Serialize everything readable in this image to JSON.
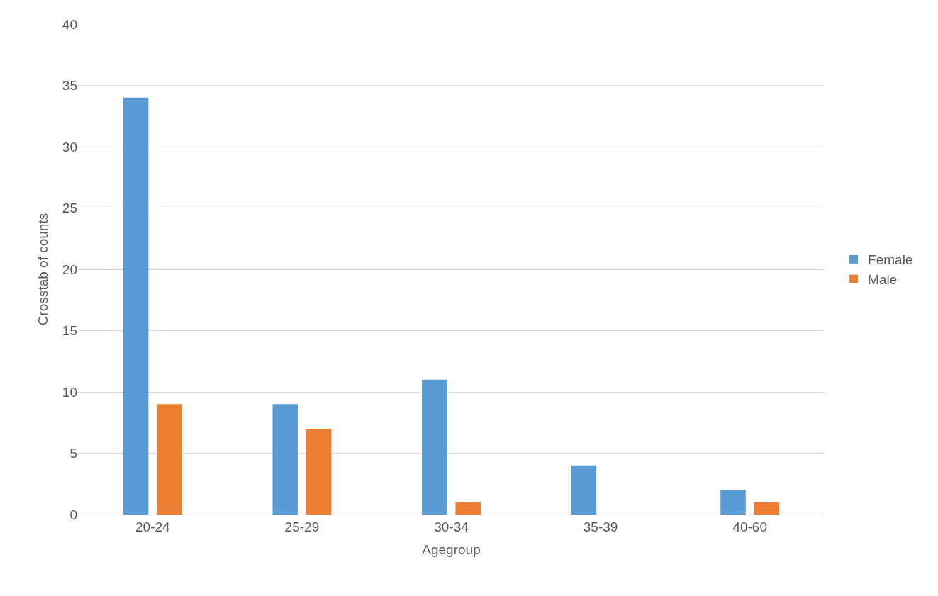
{
  "chart_data": {
    "type": "bar",
    "xlabel": "Agegroup",
    "ylabel": "Crosstab of counts",
    "categories": [
      "20-24",
      "25-29",
      "30-34",
      "35-39",
      "40-60"
    ],
    "series": [
      {
        "name": "Female",
        "color": "#5b9bd5",
        "values": [
          34,
          9,
          11,
          4,
          2
        ]
      },
      {
        "name": "Male",
        "color": "#ed7d31",
        "values": [
          9,
          7,
          1,
          0,
          1
        ]
      }
    ],
    "ylim": [
      0,
      40
    ],
    "yticks": [
      0,
      5,
      10,
      15,
      20,
      25,
      30,
      35,
      40
    ],
    "grid": "y",
    "legend": "right"
  }
}
